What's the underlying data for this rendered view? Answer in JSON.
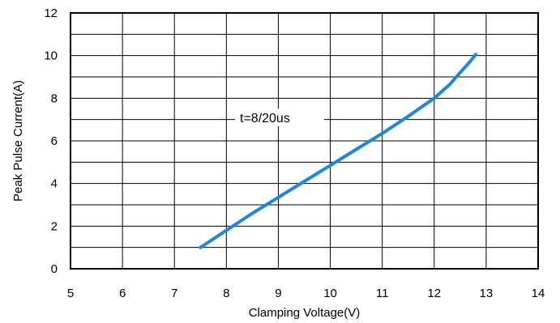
{
  "chart_data": {
    "type": "line",
    "title": "",
    "xlabel": "Clamping Voltage(V)",
    "ylabel": "Peak Pulse Current(A)",
    "xlim": [
      5,
      14
    ],
    "ylim": [
      0,
      12
    ],
    "x_ticks": [
      "5",
      "6",
      "7",
      "8",
      "9",
      "10",
      "11",
      "12",
      "13",
      "14"
    ],
    "y_ticks": [
      "0",
      "2",
      "4",
      "6",
      "8",
      "10",
      "12"
    ],
    "x_tick_values": [
      5,
      6,
      7,
      8,
      9,
      10,
      11,
      12,
      13,
      14
    ],
    "y_tick_values": [
      0,
      2,
      4,
      6,
      8,
      10,
      12
    ],
    "grid": true,
    "annotation": "t=8/20us",
    "series": [
      {
        "color": "#1e88d8",
        "x": [
          7.5,
          8.0,
          8.5,
          9.0,
          9.5,
          10.0,
          10.5,
          11.0,
          11.5,
          12.0,
          12.3,
          12.5,
          12.7,
          12.8
        ],
        "y": [
          1.0,
          1.8,
          2.6,
          3.35,
          4.1,
          4.85,
          5.6,
          6.35,
          7.15,
          8.0,
          8.65,
          9.2,
          9.75,
          10.05
        ]
      }
    ]
  }
}
